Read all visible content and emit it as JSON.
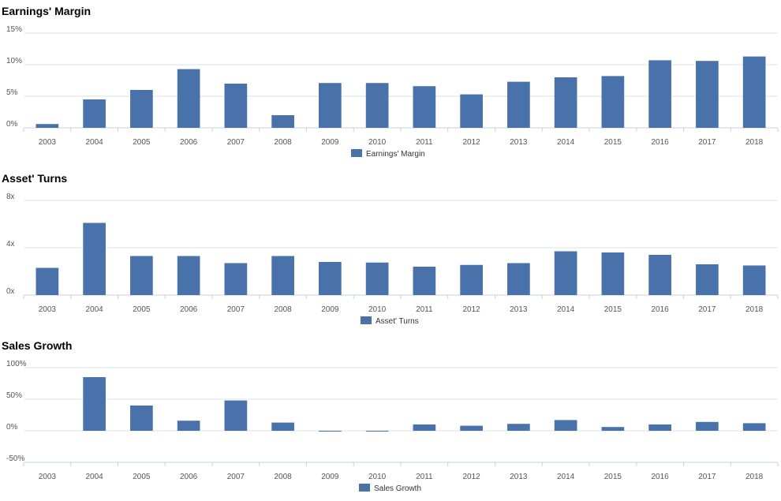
{
  "colors": {
    "bar": "#4a72aa",
    "grid": "#dde3ea",
    "axis": "#c7d2de"
  },
  "chart_data": [
    {
      "type": "bar",
      "title": "Earnings' Margin",
      "categories": [
        "2003",
        "2004",
        "2005",
        "2006",
        "2007",
        "2008",
        "2009",
        "2010",
        "2011",
        "2012",
        "2013",
        "2014",
        "2015",
        "2016",
        "2017",
        "2018"
      ],
      "series": [
        {
          "name": "Earnings' Margin",
          "values": [
            0.6,
            4.5,
            6.0,
            9.3,
            7.0,
            2.0,
            7.1,
            7.1,
            6.6,
            5.3,
            7.3,
            8.0,
            8.2,
            10.7,
            10.6,
            11.3
          ]
        }
      ],
      "ylim": [
        0,
        15
      ],
      "yticks": [
        0,
        5,
        10,
        15
      ],
      "ytick_labels": [
        "0%",
        "5%",
        "10%",
        "15%"
      ],
      "grid": true,
      "legend": "bottom-center"
    },
    {
      "type": "bar",
      "title": "Asset' Turns",
      "categories": [
        "2003",
        "2004",
        "2005",
        "2006",
        "2007",
        "2008",
        "2009",
        "2010",
        "2011",
        "2012",
        "2013",
        "2014",
        "2015",
        "2016",
        "2017",
        "2018"
      ],
      "series": [
        {
          "name": "Asset' Turns",
          "values": [
            2.3,
            6.1,
            3.3,
            3.3,
            2.7,
            3.3,
            2.8,
            2.75,
            2.4,
            2.55,
            2.7,
            3.7,
            3.6,
            3.4,
            2.6,
            2.5
          ]
        }
      ],
      "ylim": [
        0,
        8
      ],
      "yticks": [
        0,
        4,
        8
      ],
      "ytick_labels": [
        "0x",
        "4x",
        "8x"
      ],
      "grid": true,
      "legend": "bottom-center"
    },
    {
      "type": "bar",
      "title": "Sales Growth",
      "categories": [
        "2003",
        "2004",
        "2005",
        "2006",
        "2007",
        "2008",
        "2009",
        "2010",
        "2011",
        "2012",
        "2013",
        "2014",
        "2015",
        "2016",
        "2017",
        "2018"
      ],
      "series": [
        {
          "name": "Sales Growth",
          "values": [
            null,
            85,
            40,
            16,
            48,
            13,
            -1,
            0,
            10,
            8,
            11,
            17,
            6,
            10,
            14,
            12
          ]
        }
      ],
      "ylim": [
        -50,
        100
      ],
      "yticks": [
        -50,
        0,
        50,
        100
      ],
      "ytick_labels": [
        "-50%",
        "0%",
        "50%",
        "100%"
      ],
      "grid": true,
      "legend": "bottom-center"
    }
  ]
}
